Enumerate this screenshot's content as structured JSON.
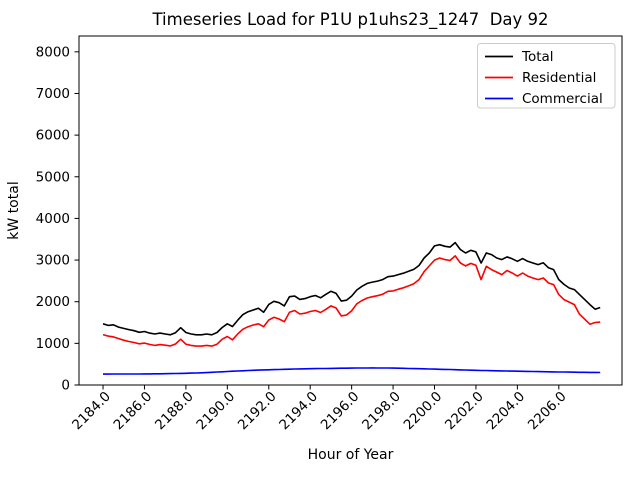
{
  "figure": {
    "title": "Timeseries Load for P1U p1uhs23_1247  Day 92",
    "xlabel": "Hour of Year",
    "ylabel": "kW total"
  },
  "chart_data": {
    "type": "line",
    "title": "Timeseries Load for P1U p1uhs23_1247  Day 92",
    "xlabel": "Hour of Year",
    "ylabel": "kW total",
    "grid": false,
    "legend_position": "upper right",
    "legend_entries": [
      "Total",
      "Residential",
      "Commercial"
    ],
    "xlim": [
      2182.84,
      2209.05
    ],
    "ylim": [
      0,
      8380
    ],
    "x_ticks": [
      2184,
      2186,
      2188,
      2190,
      2192,
      2194,
      2196,
      2198,
      2200,
      2202,
      2204,
      2206
    ],
    "x_tick_labels": [
      "2184.0",
      "2186.0",
      "2188.0",
      "2190.0",
      "2192.0",
      "2194.0",
      "2196.0",
      "2198.0",
      "2200.0",
      "2202.0",
      "2204.0",
      "2206.0"
    ],
    "y_ticks": [
      0,
      1000,
      2000,
      3000,
      4000,
      5000,
      6000,
      7000,
      8000
    ],
    "y_tick_labels": [
      "0",
      "1000",
      "2000",
      "3000",
      "4000",
      "5000",
      "6000",
      "7000",
      "8000"
    ],
    "x_start": 2184.0,
    "x_step": 0.25,
    "x_unit": "hour of year (Day 92 = hours 2184-2208)",
    "y_unit": "kW",
    "series": [
      {
        "name": "Total",
        "color": "#000000",
        "values": [
          1470,
          1430,
          1445,
          1390,
          1360,
          1330,
          1305,
          1265,
          1285,
          1245,
          1225,
          1245,
          1225,
          1205,
          1255,
          1375,
          1260,
          1225,
          1205,
          1205,
          1225,
          1205,
          1260,
          1380,
          1470,
          1405,
          1555,
          1690,
          1760,
          1800,
          1845,
          1745,
          1935,
          2010,
          1975,
          1900,
          2120,
          2135,
          2055,
          2075,
          2120,
          2150,
          2095,
          2175,
          2250,
          2200,
          2015,
          2035,
          2135,
          2280,
          2370,
          2440,
          2470,
          2495,
          2530,
          2600,
          2615,
          2650,
          2685,
          2730,
          2775,
          2870,
          3050,
          3170,
          3340,
          3370,
          3330,
          3310,
          3420,
          3250,
          3170,
          3235,
          3195,
          2930,
          3170,
          3130,
          3050,
          3010,
          3075,
          3030,
          2970,
          3035,
          2970,
          2930,
          2890,
          2935,
          2815,
          2770,
          2530,
          2415,
          2330,
          2290,
          2170,
          2050,
          1930,
          1820,
          1860
        ]
      },
      {
        "name": "Residential",
        "color": "#ff0000",
        "values": [
          1210,
          1175,
          1155,
          1115,
          1075,
          1045,
          1020,
          990,
          1005,
          975,
          950,
          970,
          955,
          940,
          985,
          1100,
          980,
          950,
          935,
          935,
          950,
          935,
          980,
          1100,
          1165,
          1085,
          1225,
          1340,
          1400,
          1440,
          1470,
          1400,
          1560,
          1625,
          1585,
          1520,
          1745,
          1790,
          1705,
          1725,
          1765,
          1790,
          1740,
          1815,
          1900,
          1850,
          1660,
          1680,
          1780,
          1950,
          2030,
          2090,
          2120,
          2145,
          2180,
          2250,
          2260,
          2300,
          2335,
          2380,
          2430,
          2530,
          2720,
          2860,
          3000,
          3050,
          3010,
          2990,
          3100,
          2930,
          2860,
          2920,
          2875,
          2530,
          2850,
          2770,
          2710,
          2650,
          2750,
          2690,
          2615,
          2690,
          2615,
          2570,
          2530,
          2570,
          2450,
          2410,
          2170,
          2050,
          1990,
          1930,
          1700,
          1580,
          1460,
          1500,
          1510
        ]
      },
      {
        "name": "Commercial",
        "color": "#0000ff",
        "values": [
          262,
          262,
          263,
          263,
          263,
          264,
          264,
          265,
          266,
          267,
          269,
          270,
          271,
          273,
          276,
          278,
          280,
          285,
          289,
          294,
          298,
          305,
          312,
          318,
          325,
          331,
          337,
          342,
          348,
          353,
          357,
          362,
          366,
          370,
          373,
          377,
          380,
          383,
          386,
          388,
          391,
          393,
          395,
          397,
          399,
          401,
          403,
          404,
          406,
          407,
          408,
          409,
          410,
          409,
          408,
          407,
          406,
          403,
          400,
          397,
          394,
          391,
          388,
          384,
          381,
          378,
          374,
          371,
          367,
          363,
          360,
          356,
          352,
          349,
          347,
          344,
          341,
          339,
          336,
          334,
          331,
          329,
          327,
          324,
          322,
          320,
          318,
          315,
          313,
          311,
          310,
          308,
          306,
          305,
          303,
          302,
          300
        ]
      }
    ]
  }
}
